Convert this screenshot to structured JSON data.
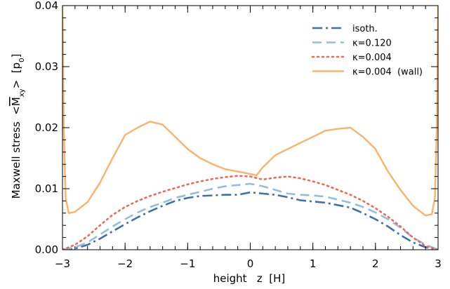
{
  "chart_data": {
    "type": "line",
    "xlabel": "height   z  [H]",
    "ylabel_prefix": "Maxwell stress  <",
    "ylabel_symbol": "M",
    "ylabel_sub": "xy",
    "ylabel_suffix": ">  [p",
    "ylabel_unit_sub": "0",
    "ylabel_end": "]",
    "xlim": [
      -3,
      3
    ],
    "ylim": [
      0,
      0.04
    ],
    "xticks": [
      -3,
      -2,
      -1,
      0,
      1,
      2,
      3
    ],
    "xtick_labels": [
      "−3",
      "−2",
      "−1",
      "0",
      "1",
      "2",
      "3"
    ],
    "yticks": [
      0,
      0.01,
      0.02,
      0.03,
      0.04
    ],
    "ytick_labels": [
      "0.00",
      "0.01",
      "0.02",
      "0.03",
      "0.04"
    ],
    "grid": false,
    "legend_position": "top-right",
    "series": [
      {
        "name": "isoth.",
        "color": "#3f6fae",
        "style": "dashdot",
        "x": [
          -3.0,
          -2.8,
          -2.6,
          -2.4,
          -2.2,
          -2.0,
          -1.8,
          -1.6,
          -1.4,
          -1.2,
          -1.0,
          -0.8,
          -0.6,
          -0.4,
          -0.2,
          0.0,
          0.2,
          0.4,
          0.6,
          0.8,
          1.0,
          1.2,
          1.4,
          1.6,
          1.8,
          2.0,
          2.2,
          2.4,
          2.6,
          2.8,
          3.0
        ],
        "y": [
          0.0,
          0.0002,
          0.0008,
          0.0018,
          0.003,
          0.0042,
          0.0053,
          0.0063,
          0.0072,
          0.008,
          0.0085,
          0.0088,
          0.0089,
          0.009,
          0.009,
          0.0094,
          0.0092,
          0.009,
          0.0086,
          0.0081,
          0.0079,
          0.0077,
          0.0073,
          0.0069,
          0.006,
          0.005,
          0.0038,
          0.0024,
          0.0012,
          0.0004,
          0.0
        ]
      },
      {
        "name": "κ=0.120",
        "color": "#92bde0",
        "style": "dashed",
        "x": [
          -3.0,
          -2.8,
          -2.6,
          -2.4,
          -2.2,
          -2.0,
          -1.8,
          -1.6,
          -1.4,
          -1.2,
          -1.0,
          -0.8,
          -0.6,
          -0.4,
          -0.2,
          0.0,
          0.2,
          0.4,
          0.6,
          0.8,
          1.0,
          1.2,
          1.4,
          1.6,
          1.8,
          2.0,
          2.2,
          2.4,
          2.6,
          2.8,
          3.0
        ],
        "y": [
          0.0,
          0.0004,
          0.0012,
          0.0025,
          0.0038,
          0.005,
          0.0061,
          0.007,
          0.0077,
          0.0085,
          0.009,
          0.0095,
          0.01,
          0.0104,
          0.0106,
          0.0108,
          0.0104,
          0.0098,
          0.0092,
          0.009,
          0.0089,
          0.0087,
          0.0082,
          0.0077,
          0.007,
          0.0061,
          0.005,
          0.0036,
          0.002,
          0.0008,
          0.0
        ]
      },
      {
        "name": "κ=0.004",
        "color": "#ec6a52",
        "style": "dotted",
        "x": [
          -3.0,
          -2.8,
          -2.6,
          -2.4,
          -2.2,
          -2.0,
          -1.8,
          -1.6,
          -1.4,
          -1.2,
          -1.0,
          -0.8,
          -0.6,
          -0.4,
          -0.2,
          0.0,
          0.2,
          0.4,
          0.6,
          0.8,
          1.0,
          1.2,
          1.4,
          1.6,
          1.8,
          2.0,
          2.2,
          2.4,
          2.6,
          2.8,
          3.0
        ],
        "y": [
          0.0,
          0.0008,
          0.0022,
          0.004,
          0.0057,
          0.007,
          0.008,
          0.0088,
          0.0095,
          0.0101,
          0.0107,
          0.0112,
          0.0116,
          0.0119,
          0.0121,
          0.012,
          0.0115,
          0.0118,
          0.012,
          0.0117,
          0.0112,
          0.0106,
          0.0098,
          0.009,
          0.008,
          0.0068,
          0.0054,
          0.0038,
          0.002,
          0.0006,
          0.0
        ]
      },
      {
        "name": "κ=0.004  (wall)",
        "color": "#fbb36b",
        "style": "solid",
        "x": [
          -3.0,
          -2.98,
          -2.95,
          -2.9,
          -2.8,
          -2.6,
          -2.4,
          -2.2,
          -2.0,
          -1.8,
          -1.6,
          -1.4,
          -1.2,
          -1.0,
          -0.8,
          -0.6,
          -0.4,
          -0.2,
          0.0,
          0.1,
          0.2,
          0.4,
          0.6,
          0.8,
          1.0,
          1.2,
          1.4,
          1.6,
          1.8,
          2.0,
          2.2,
          2.4,
          2.6,
          2.8,
          2.9,
          2.95,
          2.98,
          3.0
        ],
        "y": [
          0.04,
          0.02,
          0.0085,
          0.006,
          0.0062,
          0.0078,
          0.011,
          0.015,
          0.0188,
          0.02,
          0.021,
          0.0205,
          0.0185,
          0.0165,
          0.015,
          0.014,
          0.0132,
          0.0128,
          0.0124,
          0.0122,
          0.0135,
          0.0155,
          0.0165,
          0.0175,
          0.0185,
          0.0195,
          0.0198,
          0.02,
          0.0185,
          0.0165,
          0.0128,
          0.0098,
          0.0072,
          0.0056,
          0.0058,
          0.0085,
          0.02,
          0.04
        ]
      }
    ]
  }
}
